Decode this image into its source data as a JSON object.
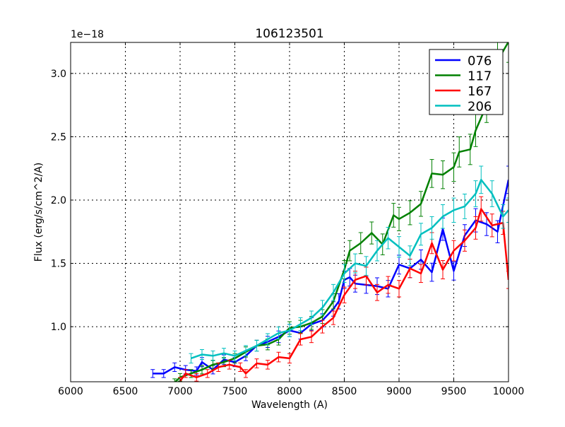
{
  "chart_data": {
    "type": "line",
    "title": "106123501",
    "xlabel": "Wavelength (A)",
    "ylabel": "Flux (erg/s/cm^2/A)",
    "y_offset_label": "1e−18",
    "xlim": [
      6000,
      10000
    ],
    "ylim": [
      0.565,
      3.245
    ],
    "xticks": [
      "6000",
      "6500",
      "7000",
      "7500",
      "8000",
      "8500",
      "9000",
      "9500",
      "10000"
    ],
    "xtick_values": [
      6000,
      6500,
      7000,
      7500,
      8000,
      8500,
      9000,
      9500,
      10000
    ],
    "yticks": [
      "1.0",
      "1.5",
      "2.0",
      "2.5",
      "3.0"
    ],
    "ytick_values": [
      1.0,
      1.5,
      2.0,
      2.5,
      3.0
    ],
    "grid": true,
    "legend_position": "top-right",
    "relative_error": 0.05,
    "series": [
      {
        "name": "076",
        "color": "#0000ff",
        "x": [
          6750,
          6850,
          6950,
          7050,
          7150,
          7200,
          7300,
          7400,
          7500,
          7600,
          7700,
          7800,
          7900,
          8000,
          8100,
          8200,
          8300,
          8400,
          8450,
          8500,
          8550,
          8600,
          8700,
          8800,
          8900,
          9000,
          9100,
          9200,
          9300,
          9400,
          9500,
          9600,
          9700,
          9800,
          9900,
          10000
        ],
        "y": [
          0.63,
          0.63,
          0.68,
          0.66,
          0.65,
          0.72,
          0.66,
          0.74,
          0.72,
          0.77,
          0.85,
          0.88,
          0.92,
          0.97,
          0.95,
          1.02,
          1.05,
          1.14,
          1.2,
          1.37,
          1.39,
          1.34,
          1.33,
          1.32,
          1.3,
          1.49,
          1.46,
          1.53,
          1.43,
          1.77,
          1.44,
          1.72,
          1.84,
          1.81,
          1.75,
          2.16
        ]
      },
      {
        "name": "117",
        "color": "#008000",
        "x": [
          6950,
          7000,
          7100,
          7200,
          7300,
          7400,
          7500,
          7600,
          7700,
          7800,
          7900,
          8000,
          8100,
          8200,
          8300,
          8400,
          8500,
          8550,
          8650,
          8750,
          8850,
          8950,
          9000,
          9100,
          9200,
          9300,
          9400,
          9500,
          9550,
          9650,
          9700,
          9800,
          9900,
          10000
        ],
        "y": [
          0.56,
          0.6,
          0.63,
          0.66,
          0.7,
          0.72,
          0.75,
          0.8,
          0.85,
          0.86,
          0.9,
          0.99,
          1.0,
          1.03,
          1.08,
          1.2,
          1.45,
          1.6,
          1.66,
          1.74,
          1.65,
          1.88,
          1.85,
          1.9,
          1.97,
          2.21,
          2.2,
          2.26,
          2.38,
          2.4,
          2.55,
          2.75,
          3.1,
          3.25
        ]
      },
      {
        "name": "167",
        "color": "#ff0000",
        "x": [
          7000,
          7050,
          7150,
          7250,
          7350,
          7450,
          7550,
          7600,
          7700,
          7800,
          7900,
          8000,
          8100,
          8200,
          8300,
          8400,
          8500,
          8600,
          8700,
          8800,
          8900,
          9000,
          9100,
          9200,
          9300,
          9400,
          9500,
          9600,
          9700,
          9750,
          9850,
          9950,
          10000
        ],
        "y": [
          0.57,
          0.63,
          0.6,
          0.63,
          0.68,
          0.7,
          0.68,
          0.63,
          0.71,
          0.7,
          0.76,
          0.75,
          0.9,
          0.92,
          1.0,
          1.07,
          1.25,
          1.37,
          1.4,
          1.27,
          1.33,
          1.3,
          1.46,
          1.42,
          1.66,
          1.45,
          1.6,
          1.68,
          1.78,
          1.93,
          1.8,
          1.82,
          1.37
        ]
      },
      {
        "name": "206",
        "color": "#00bfbf",
        "x": [
          7100,
          7200,
          7300,
          7400,
          7500,
          7600,
          7700,
          7800,
          7900,
          8000,
          8100,
          8200,
          8300,
          8400,
          8500,
          8600,
          8700,
          8800,
          8900,
          9000,
          9100,
          9200,
          9300,
          9400,
          9500,
          9600,
          9700,
          9750,
          9850,
          9950,
          10000
        ],
        "y": [
          0.75,
          0.78,
          0.77,
          0.79,
          0.77,
          0.81,
          0.85,
          0.9,
          0.95,
          0.97,
          1.02,
          1.07,
          1.15,
          1.27,
          1.42,
          1.5,
          1.48,
          1.6,
          1.7,
          1.63,
          1.56,
          1.73,
          1.78,
          1.87,
          1.92,
          1.95,
          2.05,
          2.16,
          2.05,
          1.87,
          1.92
        ]
      }
    ]
  }
}
